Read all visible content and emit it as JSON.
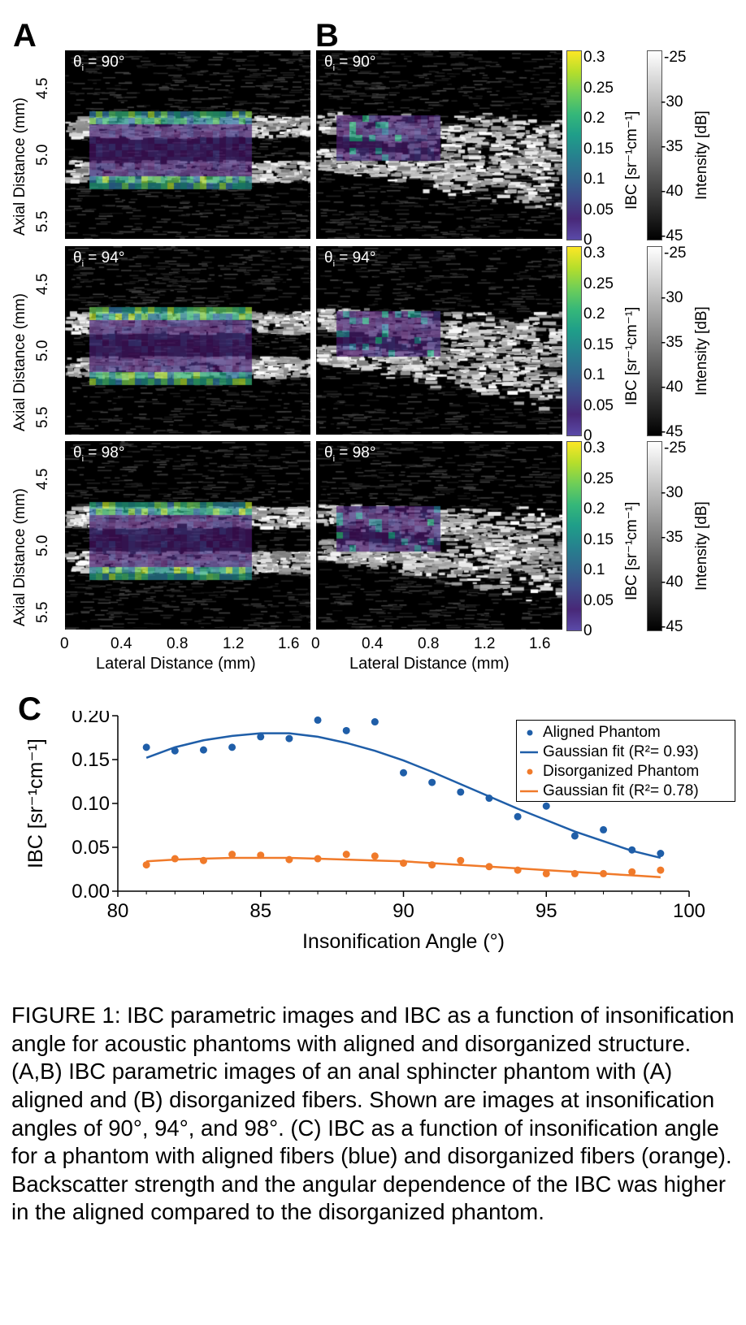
{
  "panels": {
    "a_letter": "A",
    "b_letter": "B",
    "c_letter": "C"
  },
  "images": {
    "rows": [
      {
        "theta_symbol": "θ",
        "theta_sub": "i",
        "theta_value": " = 90°"
      },
      {
        "theta_symbol": "θ",
        "theta_sub": "i",
        "theta_value": " = 94°"
      },
      {
        "theta_symbol": "θ",
        "theta_sub": "i",
        "theta_value": " = 98°"
      }
    ],
    "y_axis_label": "Axial Distance (mm)",
    "y_ticks": [
      "4.5",
      "5.0",
      "5.5"
    ],
    "x_axis_label": "Lateral Distance (mm)",
    "x_ticks_a": [
      "0",
      "0.4",
      "0.8",
      "1.2",
      "1.6"
    ],
    "x_ticks_b": [
      "0",
      "0.4",
      "0.8",
      "1.2",
      "1.6"
    ],
    "ibc_colorbar": {
      "title": "IBC [sr⁻¹cm⁻¹]",
      "ticks": [
        "0.3",
        "0.25",
        "0.2",
        "0.15",
        "0.1",
        "0.05",
        "0"
      ]
    },
    "intensity_colorbar": {
      "title": "Intensity [dB]",
      "ticks": [
        "-25",
        "-30",
        "-35",
        "-40",
        "-45"
      ]
    }
  },
  "chart_data": {
    "type": "scatter",
    "xlabel": "Insonification Angle (°)",
    "ylabel": "IBC [sr⁻¹cm⁻¹]",
    "xlim": [
      80,
      100
    ],
    "ylim": [
      0,
      0.2
    ],
    "x_ticks": [
      "80",
      "85",
      "90",
      "95",
      "100"
    ],
    "y_ticks": [
      "0.00",
      "0.05",
      "0.10",
      "0.15",
      "0.20"
    ],
    "legend_position": "top-right",
    "series": [
      {
        "name": "Aligned Phantom",
        "kind": "points",
        "color": "#1f5ea8",
        "x": [
          81,
          82,
          83,
          84,
          85,
          86,
          87,
          88,
          89,
          90,
          91,
          92,
          93,
          94,
          95,
          96,
          97,
          98,
          99
        ],
        "y": [
          0.164,
          0.16,
          0.161,
          0.164,
          0.176,
          0.174,
          0.195,
          0.183,
          0.193,
          0.135,
          0.124,
          0.113,
          0.106,
          0.085,
          0.097,
          0.063,
          0.07,
          0.047,
          0.043
        ]
      },
      {
        "name": "Gaussian fit (R²= 0.93)",
        "kind": "line",
        "color": "#1f5ea8",
        "x": [
          81,
          82,
          83,
          84,
          85,
          86,
          87,
          88,
          89,
          90,
          91,
          92,
          93,
          94,
          95,
          96,
          97,
          98,
          99
        ],
        "y": [
          0.152,
          0.164,
          0.172,
          0.177,
          0.18,
          0.18,
          0.176,
          0.169,
          0.16,
          0.149,
          0.136,
          0.122,
          0.108,
          0.094,
          0.081,
          0.068,
          0.057,
          0.046,
          0.038
        ]
      },
      {
        "name": "Disorganized Phantom",
        "kind": "points",
        "color": "#f07a2a",
        "x": [
          81,
          82,
          83,
          84,
          85,
          86,
          87,
          88,
          89,
          90,
          91,
          92,
          93,
          94,
          95,
          96,
          97,
          98,
          99
        ],
        "y": [
          0.03,
          0.037,
          0.035,
          0.042,
          0.041,
          0.036,
          0.037,
          0.042,
          0.04,
          0.032,
          0.03,
          0.035,
          0.028,
          0.024,
          0.02,
          0.02,
          0.02,
          0.022,
          0.024
        ]
      },
      {
        "name": "Gaussian fit (R²= 0.78)",
        "kind": "line",
        "color": "#f07a2a",
        "x": [
          81,
          82,
          83,
          84,
          85,
          86,
          87,
          88,
          89,
          90,
          91,
          92,
          93,
          94,
          95,
          96,
          97,
          98,
          99
        ],
        "y": [
          0.034,
          0.036,
          0.037,
          0.038,
          0.038,
          0.038,
          0.037,
          0.036,
          0.035,
          0.034,
          0.032,
          0.03,
          0.028,
          0.026,
          0.024,
          0.022,
          0.02,
          0.018,
          0.016
        ]
      }
    ]
  },
  "caption": "FIGURE 1: IBC parametric images and IBC as a function of insonification angle for acoustic phantoms with aligned and disorganized structure. (A,B) IBC parametric images of an anal sphincter phantom with (A) aligned and (B) disorganized fibers. Shown are images at insonification angles of 90°, 94°, and 98°. (C) IBC as a function of insonification angle for a phantom with aligned fibers (blue) and disorganized fibers (orange). Backscatter strength and the angular dependence of the IBC was higher in the aligned compared to the disorganized phantom."
}
